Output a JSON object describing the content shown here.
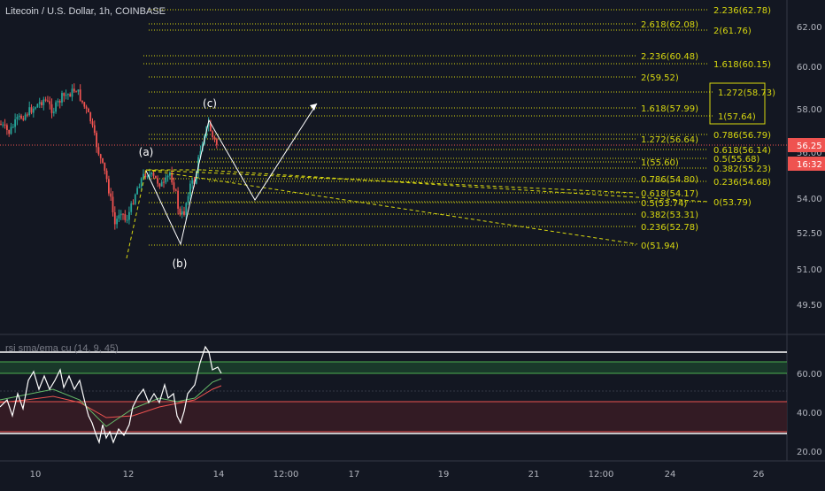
{
  "header": {
    "title": "Litecoin / U.S. Dollar, 1h, COINBASE"
  },
  "indicator": {
    "title": "rsi sma/ema cu (14, 9, 45)"
  },
  "price_axis": {
    "labels": [
      "62.00",
      "60.00",
      "58.00",
      "56.00",
      "54.00",
      "52.50",
      "51.00",
      "49.50"
    ],
    "current_price": "56.25",
    "countdown": "16:32"
  },
  "rsi_axis": {
    "labels": [
      "60.00",
      "40.00",
      "20.00"
    ]
  },
  "time_axis": {
    "labels": [
      "10",
      "12",
      "14",
      "12:00",
      "17",
      "19",
      "21",
      "12:00",
      "24",
      "26"
    ]
  },
  "wave_labels": [
    "(a)",
    "(b)",
    "(c)"
  ],
  "fib_levels": [
    "2.236(62.78)",
    "2.618(62.08)",
    "2(61.76)",
    "2.236(60.48)",
    "1.618(60.15)",
    "2(59.52)",
    "1.272(58.73)",
    "1.618(57.99)",
    "1(57.64)",
    "0.786(56.79)",
    "1.272(56.64)",
    "0.618(56.14)",
    "0.5(55.68)",
    "1(55.60)",
    "0.382(55.23)",
    "0.786(54.80)",
    "0.236(54.68)",
    "0.618(54.17)",
    "0(53.79)",
    "0.5(53.74)",
    "0.382(53.31)",
    "0.236(52.78)",
    "0(51.94)"
  ],
  "colors": {
    "background": "#131722",
    "up": "#26a69a",
    "down": "#ef5350",
    "fib": "#d8d80f",
    "price_badge": "#ef5350",
    "rsi": "#ffffff",
    "ema": "#ef5350",
    "sma": "#66bb6a"
  }
}
